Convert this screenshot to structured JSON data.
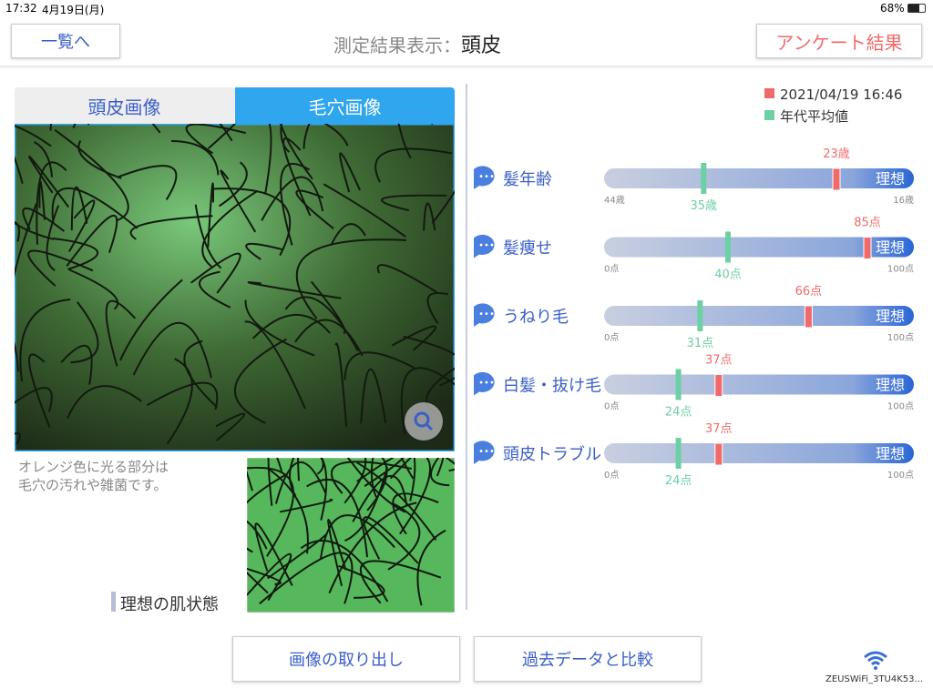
{
  "status_bar": {
    "time": "17:32",
    "date": "4月19日(月)",
    "battery": "68%"
  },
  "header": {
    "back_button": "一覧へ",
    "title": "測定結果表示：",
    "subject": "頭皮",
    "survey_button": "アンケート結果"
  },
  "image_panel": {
    "tabs": [
      "頭皮画像",
      "毛穴画像"
    ],
    "active_tab": 1,
    "note": [
      "オレンジ色に光る部分は",
      "毛穴の汚れや雑菌です。"
    ],
    "ideal_label": "理想の肌状態"
  },
  "legend": {
    "measurement": "2021/04/19 16:46",
    "average": "年代平均値",
    "measurement_color": "#f06a6a",
    "average_color": "#6dcfa4"
  },
  "metrics": [
    {
      "name": "髪年齢",
      "ideal": "理想",
      "range": [
        44,
        16
      ],
      "range_labels": [
        "44歳",
        "16歳"
      ],
      "value": 23,
      "value_label": "23歳",
      "average": 35,
      "average_label": "35歳"
    },
    {
      "name": "髪痩せ",
      "ideal": "理想",
      "range": [
        0,
        100
      ],
      "range_labels": [
        "0点",
        "100点"
      ],
      "value": 85,
      "value_label": "85点",
      "average": 40,
      "average_label": "40点"
    },
    {
      "name": "うねり毛",
      "ideal": "理想",
      "range": [
        0,
        100
      ],
      "range_labels": [
        "0点",
        "100点"
      ],
      "value": 66,
      "value_label": "66点",
      "average": 31,
      "average_label": "31点"
    },
    {
      "name": "白髪・抜け毛",
      "ideal": "理想",
      "range": [
        0,
        100
      ],
      "range_labels": [
        "0点",
        "100点"
      ],
      "value": 37,
      "value_label": "37点",
      "average": 24,
      "average_label": "24点"
    },
    {
      "name": "頭皮トラブル",
      "ideal": "理想",
      "range": [
        0,
        100
      ],
      "range_labels": [
        "0点",
        "100点"
      ],
      "value": 37,
      "value_label": "37点",
      "average": 24,
      "average_label": "24点"
    }
  ],
  "footer": {
    "buttons": [
      "画像の取り出し",
      "過去データと比較"
    ],
    "network": "ZEUSWiFi_3TU4K53..."
  }
}
